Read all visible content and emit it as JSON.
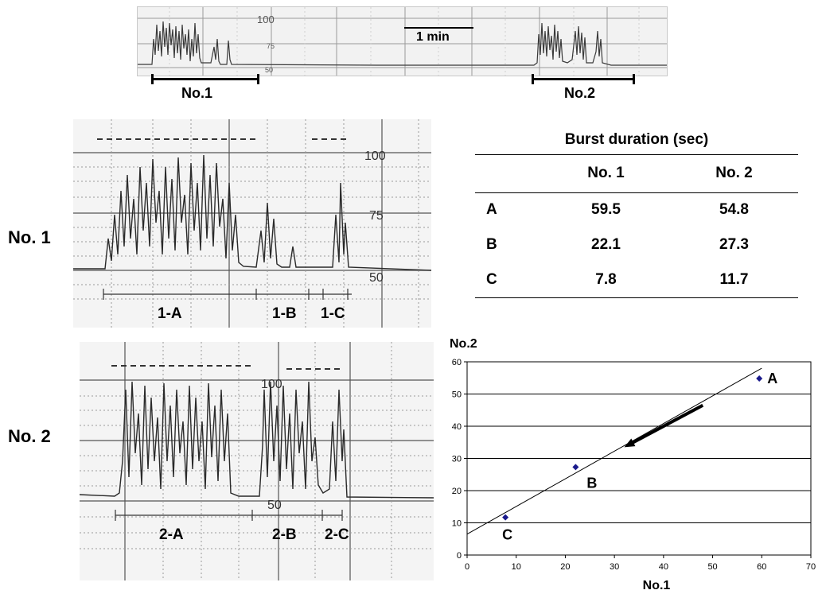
{
  "top_trace": {
    "scale_label": "1 min",
    "marks": [
      "100",
      "75",
      "50"
    ],
    "bar_labels": [
      "No.1",
      "No.2"
    ]
  },
  "recordings": [
    {
      "row_label": "No. 1",
      "marks": [
        "100",
        "75",
        "50"
      ],
      "segments": [
        "1-A",
        "1-B",
        "1-C"
      ]
    },
    {
      "row_label": "No. 2",
      "marks": [
        "100",
        "50"
      ],
      "segments": [
        "2-A",
        "2-B",
        "2-C"
      ]
    }
  ],
  "table": {
    "caption": "Burst duration (sec)",
    "headers": [
      "No. 1",
      "No. 2"
    ],
    "rows": [
      {
        "label": "A",
        "values": [
          "59.5",
          "54.8"
        ]
      },
      {
        "label": "B",
        "values": [
          "22.1",
          "27.3"
        ]
      },
      {
        "label": "C",
        "values": [
          "7.8",
          "11.7"
        ]
      }
    ]
  },
  "chart_data": {
    "type": "scatter",
    "xlabel": "No.1",
    "ylabel": "No.2",
    "xlim": [
      0,
      70
    ],
    "ylim": [
      0,
      60
    ],
    "x_ticks": [
      "0",
      "10",
      "20",
      "30",
      "40",
      "50",
      "60",
      "70"
    ],
    "y_ticks": [
      "0",
      "10",
      "20",
      "30",
      "40",
      "50",
      "60"
    ],
    "points": [
      {
        "label": "A",
        "x": 59.5,
        "y": 54.8
      },
      {
        "label": "B",
        "x": 22.1,
        "y": 27.3
      },
      {
        "label": "C",
        "x": 7.8,
        "y": 11.7
      }
    ],
    "trendline": {
      "x": [
        0,
        60
      ],
      "y": [
        6.5,
        58
      ]
    },
    "arrow": {
      "from": [
        48,
        46.5
      ],
      "to": [
        32,
        33.5
      ]
    },
    "grid": "horizontal",
    "point_color": "#1a1a8c"
  }
}
